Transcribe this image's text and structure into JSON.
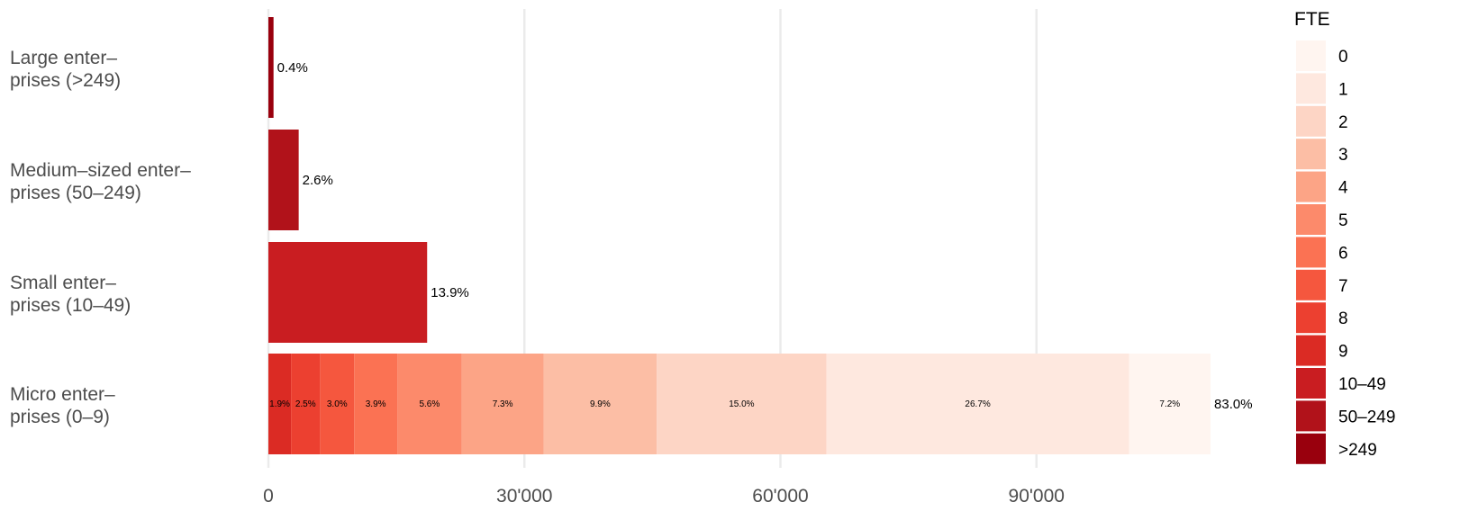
{
  "chart_data": {
    "type": "bar",
    "orientation": "horizontal",
    "stacked": true,
    "categories": [
      [
        "Large enter–",
        "prises (>249)"
      ],
      [
        "Medium–sized enter–",
        "prises (50–249)"
      ],
      [
        "Small enter–",
        "prises (10–49)"
      ],
      [
        "Micro enter–",
        "prises (0–9)"
      ]
    ],
    "xlim": [
      0,
      112000
    ],
    "xticks": [
      {
        "value": 0,
        "label": "0"
      },
      {
        "value": 30000,
        "label": "30'000"
      },
      {
        "value": 60000,
        "label": "60'000"
      },
      {
        "value": 90000,
        "label": "90'000"
      }
    ],
    "grid": "vertical major",
    "legend": {
      "title": "FTE",
      "position": "right",
      "entries": [
        {
          "label": "0",
          "color": "#FFF5F0"
        },
        {
          "label": "1",
          "color": "#FEE8DF"
        },
        {
          "label": "2",
          "color": "#FDD5C5"
        },
        {
          "label": "3",
          "color": "#FCBEA5"
        },
        {
          "label": "4",
          "color": "#FCA486"
        },
        {
          "label": "5",
          "color": "#FC8A6B"
        },
        {
          "label": "6",
          "color": "#FB7253"
        },
        {
          "label": "7",
          "color": "#F5573E"
        },
        {
          "label": "8",
          "color": "#EC4030"
        },
        {
          "label": "9",
          "color": "#DB2B24"
        },
        {
          "label": "10–49",
          "color": "#C91D21"
        },
        {
          "label": "50–249",
          "color": "#B1121A"
        },
        {
          "label": ">249",
          "color": "#99000D"
        }
      ]
    },
    "bars": [
      {
        "category_index": 0,
        "total_label": "0.4%",
        "segments": [
          {
            "fte": ">249",
            "value": 600
          }
        ]
      },
      {
        "category_index": 1,
        "total_label": "2.6%",
        "segments": [
          {
            "fte": "50–249",
            "value": 3550
          }
        ]
      },
      {
        "category_index": 2,
        "total_label": "13.9%",
        "segments": [
          {
            "fte": "10–49",
            "value": 18600
          }
        ]
      },
      {
        "category_index": 3,
        "total_label": "83.0%",
        "segments": [
          {
            "fte": "9",
            "value": 2650,
            "label": "1.9%"
          },
          {
            "fte": "8",
            "value": 3400,
            "label": "2.5%"
          },
          {
            "fte": "7",
            "value": 4000,
            "label": "3.0%"
          },
          {
            "fte": "6",
            "value": 5050,
            "label": "3.9%"
          },
          {
            "fte": "5",
            "value": 7550,
            "label": "5.6%"
          },
          {
            "fte": "4",
            "value": 9600,
            "label": "7.3%"
          },
          {
            "fte": "3",
            "value": 13250,
            "label": "9.9%"
          },
          {
            "fte": "2",
            "value": 19900,
            "label": "15.0%"
          },
          {
            "fte": "1",
            "value": 35450,
            "label": "26.7%"
          },
          {
            "fte": "0",
            "value": 9550,
            "label": "7.2%"
          }
        ]
      }
    ]
  }
}
